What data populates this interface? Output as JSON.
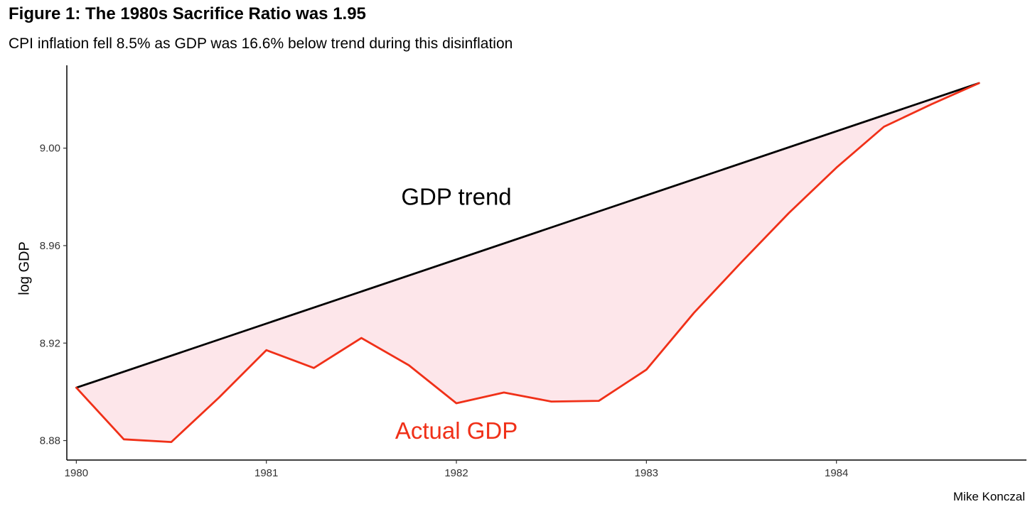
{
  "chart": {
    "title": "Figure 1: The 1980s Sacrifice Ratio was 1.95",
    "subtitle": "CPI inflation fell 8.5% as GDP was 16.6% below trend during this disinflation",
    "caption": "Mike Konczal"
  },
  "chart_data": {
    "type": "line",
    "title": "Figure 1: The 1980s Sacrifice Ratio was 1.95",
    "subtitle": "CPI inflation fell 8.5% as GDP was 16.6% below trend during this disinflation",
    "xlabel": "",
    "ylabel": "log GDP",
    "xlim": [
      1979.95,
      1985.0
    ],
    "ylim": [
      8.872,
      9.034
    ],
    "x_ticks": [
      1980,
      1981,
      1982,
      1983,
      1984
    ],
    "x_tick_labels": [
      "1980",
      "1981",
      "1982",
      "1983",
      "1984"
    ],
    "y_ticks": [
      8.88,
      8.92,
      8.96,
      9.0
    ],
    "y_tick_labels": [
      "8.88",
      "8.92",
      "8.96",
      "9.00"
    ],
    "grid": false,
    "legend": "none",
    "fill_between": {
      "color": "#fde6ea",
      "between": [
        "GDP trend",
        "Actual GDP"
      ]
    },
    "series": [
      {
        "name": "GDP trend",
        "color": "#000000",
        "x": [
          1980.0,
          1984.75
        ],
        "y": [
          8.9017,
          9.0267
        ]
      },
      {
        "name": "Actual GDP",
        "color": "#f03018",
        "x": [
          1980.0,
          1980.25,
          1980.5,
          1980.75,
          1981.0,
          1981.25,
          1981.5,
          1981.75,
          1982.0,
          1982.25,
          1982.5,
          1982.75,
          1983.0,
          1983.25,
          1983.5,
          1983.75,
          1984.0,
          1984.25,
          1984.5,
          1984.75
        ],
        "y": [
          8.9017,
          8.8805,
          8.8794,
          8.8976,
          8.9171,
          8.9098,
          8.9221,
          8.9109,
          8.8953,
          8.8997,
          8.896,
          8.8963,
          8.9091,
          8.9324,
          8.9532,
          8.9734,
          8.992,
          9.0088,
          9.018,
          9.0267
        ]
      }
    ],
    "annotations": [
      {
        "text": "GDP trend",
        "x": 1982.0,
        "y": 8.98,
        "color": "#000000"
      },
      {
        "text": "Actual GDP",
        "x": 1982.0,
        "y": 8.884,
        "color": "#f03018"
      }
    ]
  }
}
